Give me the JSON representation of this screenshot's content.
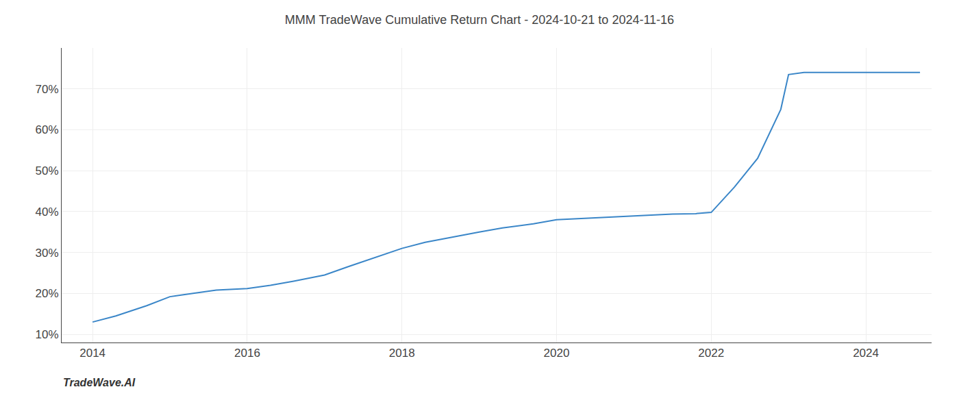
{
  "chart_data": {
    "type": "line",
    "title": "MMM TradeWave Cumulative Return Chart - 2024-10-21 to 2024-11-16",
    "annotations": [
      "TradeWave.AI"
    ],
    "x": [
      2014.0,
      2014.3,
      2014.7,
      2015.0,
      2015.3,
      2015.6,
      2016.0,
      2016.3,
      2016.6,
      2017.0,
      2017.3,
      2017.7,
      2018.0,
      2018.3,
      2018.7,
      2019.0,
      2019.3,
      2019.7,
      2020.0,
      2020.2,
      2020.5,
      2020.8,
      2021.0,
      2021.2,
      2021.5,
      2021.8,
      2022.0,
      2022.3,
      2022.6,
      2022.9,
      2023.0,
      2023.2,
      2023.5,
      2023.8,
      2024.0,
      2024.3,
      2024.7
    ],
    "values": [
      13.0,
      14.5,
      17.0,
      19.2,
      20.0,
      20.8,
      21.2,
      22.0,
      23.0,
      24.5,
      26.5,
      29.0,
      31.0,
      32.5,
      34.0,
      35.0,
      36.0,
      37.0,
      38.0,
      38.2,
      38.4,
      38.7,
      39.0,
      39.2,
      39.4,
      39.5,
      39.8,
      46.0,
      53.0,
      65.0,
      73.5,
      74.0,
      74.0,
      74.0,
      74.0,
      74.0,
      74.0
    ],
    "color": "#3a86c8",
    "xlim": [
      2013.6,
      2024.85
    ],
    "xticks": [
      2014,
      2016,
      2018,
      2020,
      2022,
      2024
    ],
    "ylim": [
      8,
      80
    ],
    "yticks": [
      {
        "value": 10,
        "label": "10%"
      },
      {
        "value": 20,
        "label": "20%"
      },
      {
        "value": 30,
        "label": "30%"
      },
      {
        "value": 40,
        "label": "40%"
      },
      {
        "value": 50,
        "label": "50%"
      },
      {
        "value": 60,
        "label": "60%"
      },
      {
        "value": 70,
        "label": "70%"
      }
    ],
    "grid": true
  }
}
